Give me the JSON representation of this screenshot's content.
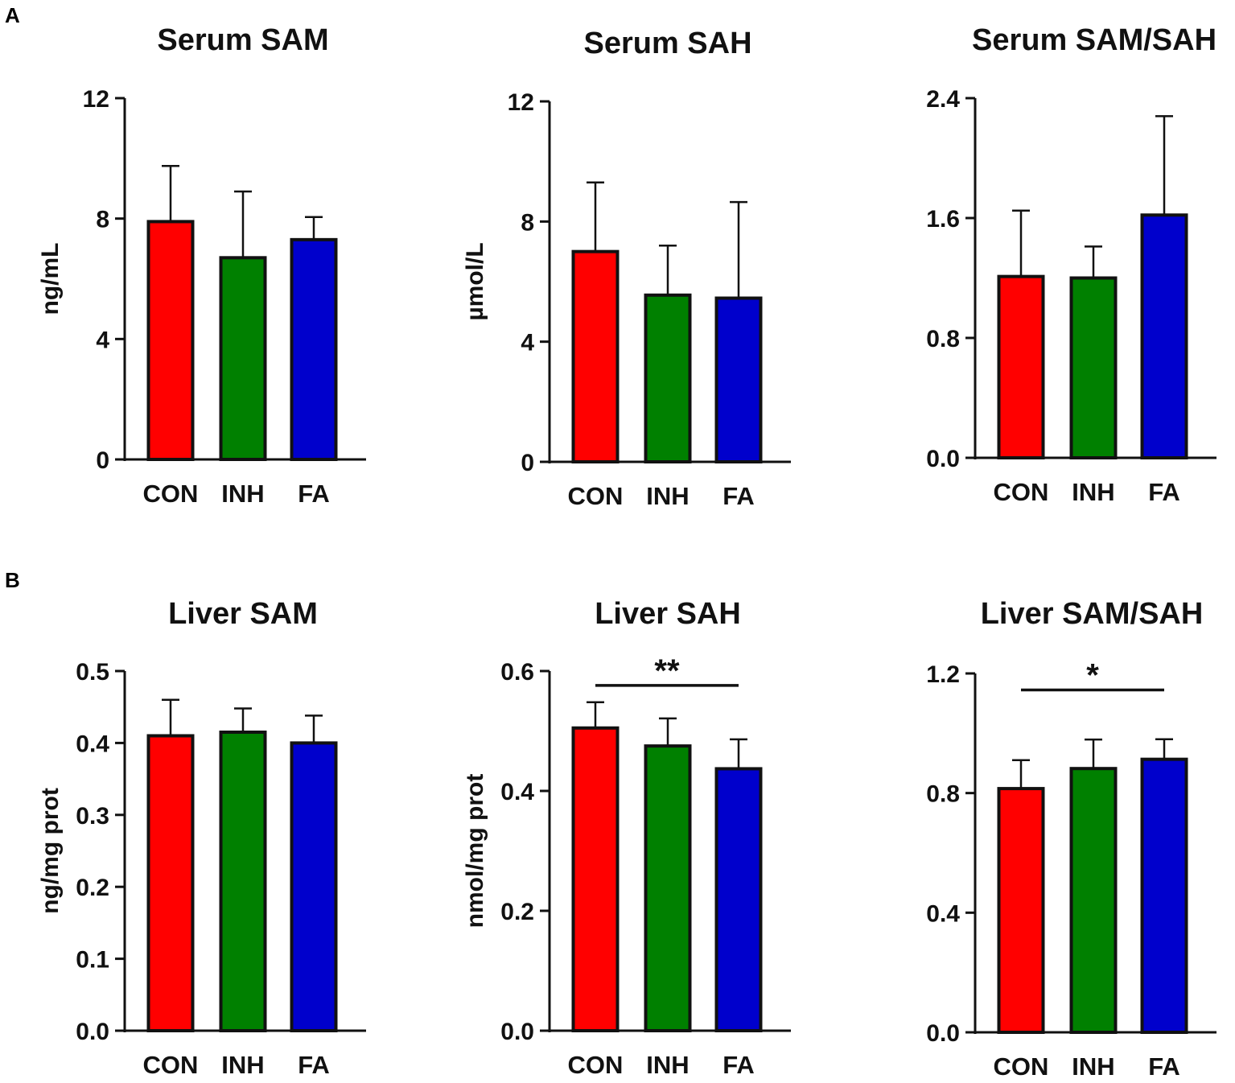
{
  "panels": [
    {
      "letter": "A"
    },
    {
      "letter": "B"
    }
  ],
  "colors": {
    "CON": "#ff0000",
    "INH": "#008000",
    "FA": "#0000cc",
    "axis": "#111111"
  },
  "chart_data": [
    {
      "type": "bar",
      "panel": "A",
      "title": "Serum SAM",
      "ylabel": "ng/mL",
      "xlabel": "",
      "categories": [
        "CON",
        "INH",
        "FA"
      ],
      "values": [
        7.9,
        6.7,
        7.3
      ],
      "errors": [
        1.85,
        2.2,
        0.75
      ],
      "ylim": [
        0,
        12
      ],
      "yticks": [
        0,
        4,
        8,
        12
      ],
      "yticklabels": [
        "0",
        "4",
        "8",
        "12"
      ],
      "significance": null
    },
    {
      "type": "bar",
      "panel": "A",
      "title": "Serum SAH",
      "ylabel": "µmol/L",
      "xlabel": "",
      "categories": [
        "CON",
        "INH",
        "FA"
      ],
      "values": [
        7.0,
        5.55,
        5.45
      ],
      "errors": [
        2.3,
        1.65,
        3.2
      ],
      "ylim": [
        0,
        12
      ],
      "yticks": [
        0,
        4,
        8,
        12
      ],
      "yticklabels": [
        "0",
        "4",
        "8",
        "12"
      ],
      "significance": null
    },
    {
      "type": "bar",
      "panel": "A",
      "title": "Serum SAM/SAH",
      "ylabel": "",
      "xlabel": "",
      "categories": [
        "CON",
        "INH",
        "FA"
      ],
      "values": [
        1.21,
        1.2,
        1.62
      ],
      "errors": [
        0.44,
        0.21,
        0.66
      ],
      "ylim": [
        0,
        2.4
      ],
      "yticks": [
        0,
        0.8,
        1.6,
        2.4
      ],
      "yticklabels": [
        "0.0",
        "0.8",
        "1.6",
        "2.4"
      ],
      "significance": null
    },
    {
      "type": "bar",
      "panel": "B",
      "title": "Liver SAM",
      "ylabel": "ng/mg prot",
      "xlabel": "",
      "categories": [
        "CON",
        "INH",
        "FA"
      ],
      "values": [
        0.41,
        0.415,
        0.4
      ],
      "errors": [
        0.05,
        0.033,
        0.038
      ],
      "ylim": [
        0,
        0.5
      ],
      "yticks": [
        0,
        0.1,
        0.2,
        0.3,
        0.4,
        0.5
      ],
      "yticklabels": [
        "0.0",
        "0.1",
        "0.2",
        "0.3",
        "0.4",
        "0.5"
      ],
      "significance": null
    },
    {
      "type": "bar",
      "panel": "B",
      "title": "Liver SAH",
      "ylabel": "nmol/mg prot",
      "xlabel": "",
      "categories": [
        "CON",
        "INH",
        "FA"
      ],
      "values": [
        0.505,
        0.475,
        0.437
      ],
      "errors": [
        0.043,
        0.046,
        0.049
      ],
      "ylim": [
        0,
        0.6
      ],
      "yticks": [
        0,
        0.2,
        0.4,
        0.6
      ],
      "yticklabels": [
        "0.0",
        "0.2",
        "0.4",
        "0.6"
      ],
      "significance": {
        "from": "CON",
        "to": "FA",
        "label": "**",
        "level": 0.576
      }
    },
    {
      "type": "bar",
      "panel": "B",
      "title": "Liver SAM/SAH",
      "ylabel": "",
      "xlabel": "",
      "categories": [
        "CON",
        "INH",
        "FA"
      ],
      "values": [
        0.815,
        0.882,
        0.913
      ],
      "errors": [
        0.095,
        0.097,
        0.067
      ],
      "ylim": [
        0,
        1.2
      ],
      "yticks": [
        0,
        0.4,
        0.8,
        1.2
      ],
      "yticklabels": [
        "0.0",
        "0.4",
        "0.8",
        "1.2"
      ],
      "significance": {
        "from": "CON",
        "to": "FA",
        "label": "*",
        "level": 1.145
      }
    }
  ]
}
